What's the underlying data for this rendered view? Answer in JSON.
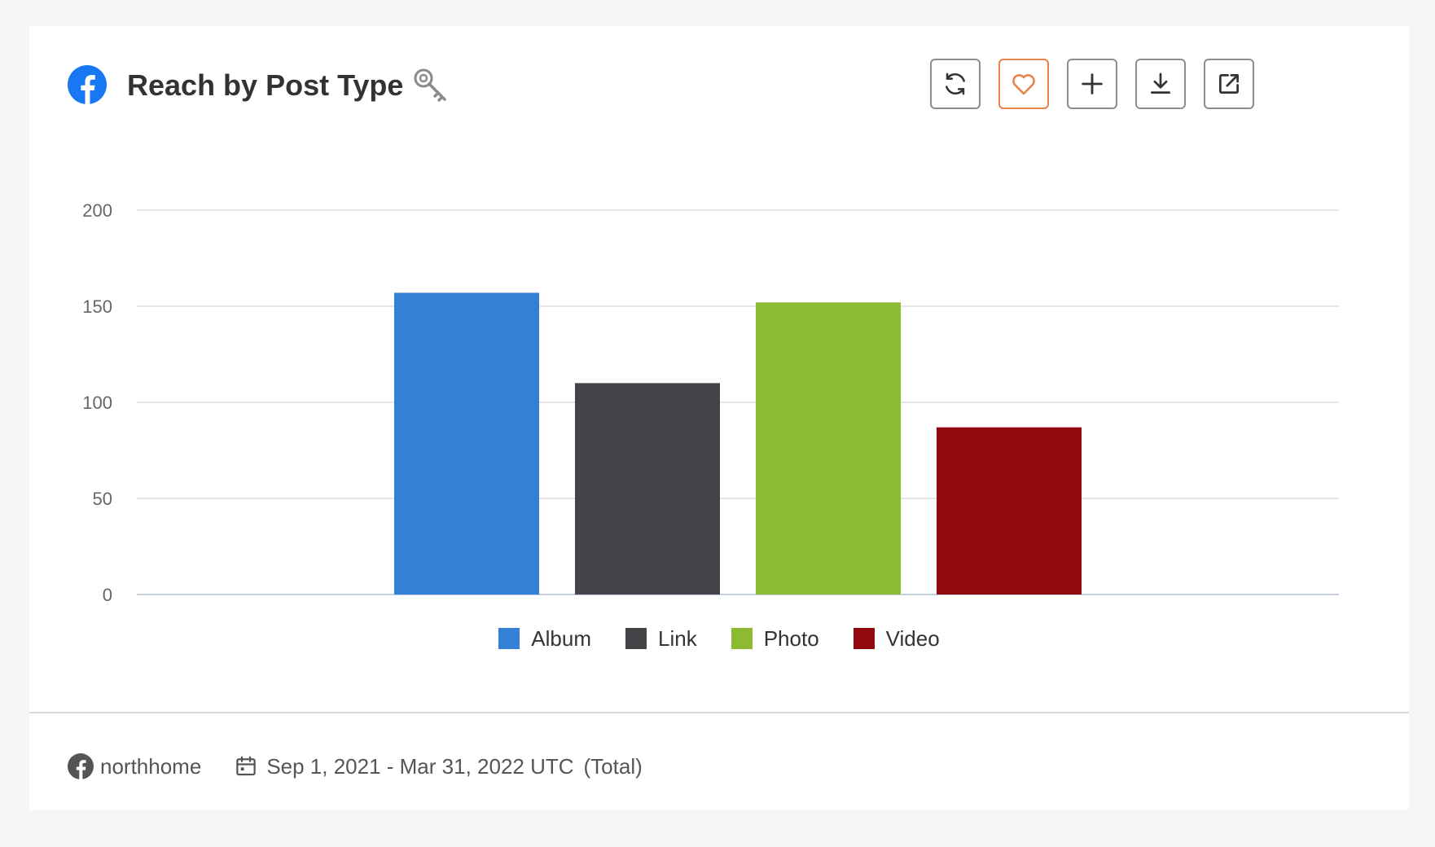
{
  "header": {
    "title": "Reach by Post Type",
    "platform_icon": "facebook-icon",
    "title_icon": "key-icon",
    "toolbar": [
      {
        "name": "refresh-button",
        "icon": "refresh-icon"
      },
      {
        "name": "favorite-button",
        "icon": "heart-icon",
        "color": "#e8824a"
      },
      {
        "name": "add-button",
        "icon": "plus-icon"
      },
      {
        "name": "download-button",
        "icon": "download-icon"
      },
      {
        "name": "open-external-button",
        "icon": "external-link-icon"
      }
    ]
  },
  "chart_data": {
    "type": "bar",
    "title": "Reach by Post Type",
    "categories": [
      "northhome"
    ],
    "series": [
      {
        "name": "Album",
        "values": [
          157
        ],
        "color": "#3480d6"
      },
      {
        "name": "Link",
        "values": [
          110
        ],
        "color": "#434348"
      },
      {
        "name": "Photo",
        "values": [
          152
        ],
        "color": "#8cbb33"
      },
      {
        "name": "Video",
        "values": [
          87
        ],
        "color": "#920a0d"
      }
    ],
    "xlabel": "",
    "ylabel": "",
    "ylim": [
      0,
      200
    ],
    "yticks": [
      "0",
      "50",
      "100",
      "150",
      "200"
    ],
    "grid": true,
    "legend": "bottom-center"
  },
  "footer": {
    "account": "northhome",
    "date_range": "Sep 1, 2021 - Mar 31, 2022 UTC",
    "aggregation": "(Total)"
  }
}
